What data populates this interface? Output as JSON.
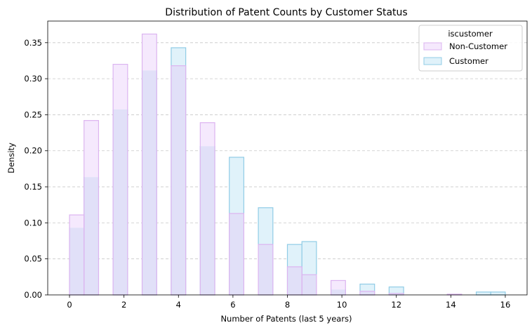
{
  "chart_data": {
    "type": "histogram",
    "title": "Distribution of Patent Counts by Customer Status",
    "xlabel": "Number of Patents (last 5 years)",
    "ylabel": "Density",
    "xlim": [
      -0.8,
      16.8
    ],
    "ylim": [
      0,
      0.38
    ],
    "x_ticks": [
      0,
      2,
      4,
      6,
      8,
      10,
      12,
      14,
      16
    ],
    "y_ticks": [
      0.0,
      0.05,
      0.1,
      0.15,
      0.2,
      0.25,
      0.3,
      0.35
    ],
    "grid": "y dashed",
    "legend": {
      "title": "iscustomer",
      "placement": "top-right",
      "entries": [
        "Non-Customer",
        "Customer"
      ]
    },
    "series": [
      {
        "name": "Non-Customer",
        "color_fill": "#f5e9fd",
        "color_edge": "#dcb4f0",
        "bins": [
          {
            "x0": 0.0,
            "x1": 0.533,
            "density": 0.111
          },
          {
            "x0": 0.533,
            "x1": 1.067,
            "density": 0.242
          },
          {
            "x0": 1.6,
            "x1": 2.133,
            "density": 0.32
          },
          {
            "x0": 2.667,
            "x1": 3.2,
            "density": 0.362
          },
          {
            "x0": 3.733,
            "x1": 4.267,
            "density": 0.318
          },
          {
            "x0": 4.8,
            "x1": 5.333,
            "density": 0.239
          },
          {
            "x0": 5.867,
            "x1": 6.4,
            "density": 0.113
          },
          {
            "x0": 6.933,
            "x1": 7.467,
            "density": 0.07
          },
          {
            "x0": 8.0,
            "x1": 8.533,
            "density": 0.039
          },
          {
            "x0": 8.533,
            "x1": 9.067,
            "density": 0.028
          },
          {
            "x0": 9.6,
            "x1": 10.133,
            "density": 0.02
          },
          {
            "x0": 10.667,
            "x1": 11.2,
            "density": 0.005
          },
          {
            "x0": 11.733,
            "x1": 12.267,
            "density": 0.002
          },
          {
            "x0": 13.867,
            "x1": 14.4,
            "density": 0.001
          }
        ]
      },
      {
        "name": "Customer",
        "color_fill": "#e0f2fa",
        "color_edge": "#90cce6",
        "bins": [
          {
            "x0": 0.0,
            "x1": 0.533,
            "density": 0.093
          },
          {
            "x0": 0.533,
            "x1": 1.067,
            "density": 0.163
          },
          {
            "x0": 1.6,
            "x1": 2.133,
            "density": 0.257
          },
          {
            "x0": 2.667,
            "x1": 3.2,
            "density": 0.311
          },
          {
            "x0": 3.733,
            "x1": 4.267,
            "density": 0.343
          },
          {
            "x0": 4.8,
            "x1": 5.333,
            "density": 0.206
          },
          {
            "x0": 5.867,
            "x1": 6.4,
            "density": 0.191
          },
          {
            "x0": 6.933,
            "x1": 7.467,
            "density": 0.121
          },
          {
            "x0": 8.0,
            "x1": 8.533,
            "density": 0.07
          },
          {
            "x0": 8.533,
            "x1": 9.067,
            "density": 0.074
          },
          {
            "x0": 9.6,
            "x1": 10.133,
            "density": 0.007
          },
          {
            "x0": 10.667,
            "x1": 11.2,
            "density": 0.015
          },
          {
            "x0": 11.733,
            "x1": 12.267,
            "density": 0.011
          },
          {
            "x0": 14.933,
            "x1": 15.467,
            "density": 0.004
          },
          {
            "x0": 15.467,
            "x1": 16.0,
            "density": 0.004
          }
        ]
      }
    ],
    "overlap_color": "#e1e0f8"
  }
}
